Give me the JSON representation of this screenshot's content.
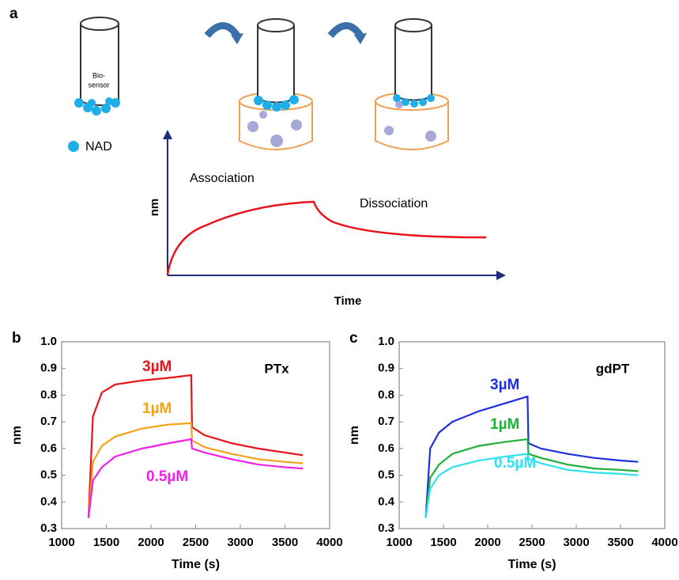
{
  "schematic": {
    "panel": "a",
    "sensor_label": [
      "Bio-",
      "sensor"
    ],
    "legend_label": "NAD",
    "phase_1": "Association",
    "phase_2": "Dissociation",
    "ylabel": "nm",
    "xlabel": "Time"
  },
  "chart_data": [
    {
      "type": "line",
      "panel": "b",
      "annotation": "PTx",
      "xlabel": "Time (s)",
      "ylabel": "nm",
      "x": [
        1300,
        1350,
        1450,
        1600,
        1900,
        2200,
        2450,
        2460,
        2600,
        2900,
        3200,
        3500,
        3700
      ],
      "series": [
        {
          "name": "3µM",
          "color": "#e8141c",
          "values": [
            0.34,
            0.72,
            0.81,
            0.84,
            0.855,
            0.865,
            0.875,
            0.68,
            0.65,
            0.62,
            0.6,
            0.585,
            0.575
          ]
        },
        {
          "name": "1µM",
          "color": "#f5a21b",
          "values": [
            0.34,
            0.55,
            0.61,
            0.645,
            0.675,
            0.69,
            0.695,
            0.63,
            0.605,
            0.58,
            0.56,
            0.55,
            0.545
          ]
        },
        {
          "name": "0.5µM",
          "color": "#f020e8",
          "values": [
            0.34,
            0.48,
            0.53,
            0.57,
            0.6,
            0.62,
            0.635,
            0.6,
            0.585,
            0.56,
            0.54,
            0.53,
            0.525
          ]
        }
      ],
      "xlim": [
        1000,
        4000
      ],
      "xticks": [
        1000,
        1500,
        2000,
        2500,
        3000,
        3500,
        4000
      ],
      "ylim": [
        0.3,
        1
      ],
      "yticks": [
        0.3,
        0.4,
        0.5,
        0.6,
        0.7,
        0.8,
        0.9,
        {
          "value": 1,
          "label": "1.0"
        }
      ]
    },
    {
      "type": "line",
      "panel": "c",
      "annotation": "gdPT",
      "xlabel": "Time (s)",
      "ylabel": "nm",
      "x": [
        1300,
        1350,
        1450,
        1600,
        1900,
        2200,
        2450,
        2460,
        2600,
        2900,
        3200,
        3500,
        3700
      ],
      "series": [
        {
          "name": "3µM",
          "color": "#1f2fe0",
          "values": [
            0.34,
            0.6,
            0.66,
            0.7,
            0.74,
            0.77,
            0.795,
            0.62,
            0.6,
            0.58,
            0.565,
            0.555,
            0.55
          ]
        },
        {
          "name": "1µM",
          "color": "#1fb03a",
          "values": [
            0.34,
            0.49,
            0.54,
            0.58,
            0.61,
            0.625,
            0.635,
            0.58,
            0.565,
            0.54,
            0.525,
            0.52,
            0.515
          ]
        },
        {
          "name": "0.5µM",
          "color": "#2fe0f0",
          "values": [
            0.34,
            0.45,
            0.5,
            0.53,
            0.555,
            0.57,
            0.58,
            0.56,
            0.545,
            0.52,
            0.51,
            0.505,
            0.5
          ]
        }
      ],
      "xlim": [
        1000,
        4000
      ],
      "xticks": [
        1000,
        1500,
        2000,
        2500,
        3000,
        3500,
        4000
      ],
      "ylim": [
        0.3,
        1
      ],
      "yticks": [
        0.3,
        0.4,
        0.5,
        0.6,
        0.7,
        0.8,
        0.9,
        {
          "value": 1,
          "label": "1.0"
        }
      ]
    }
  ]
}
